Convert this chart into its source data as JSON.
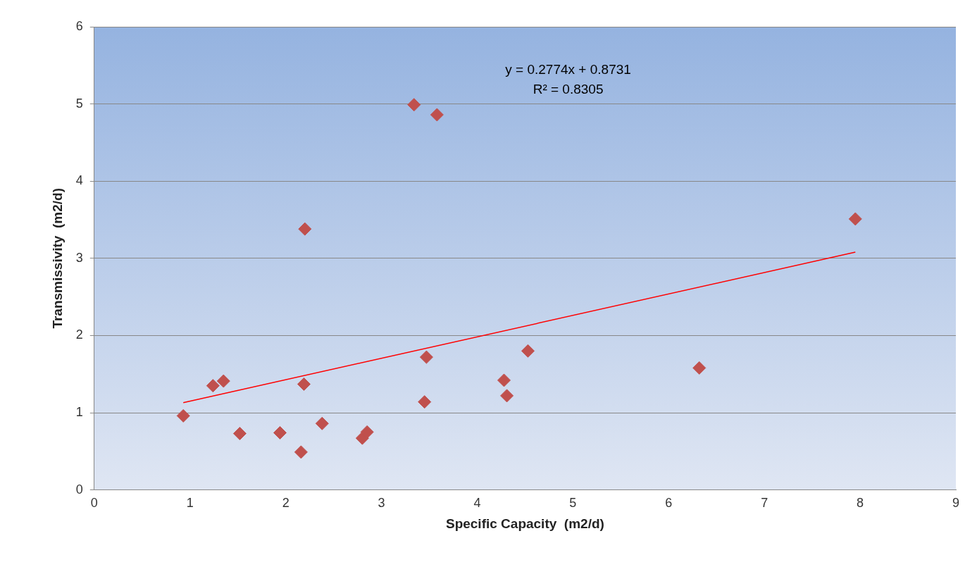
{
  "chart_data": {
    "type": "scatter",
    "xlabel": "Specific Capacity  (m2/d)",
    "ylabel": "Transmissivity  (m2/d)",
    "annotations": [
      "y = 0.2774x + 0.8731",
      "R² = 0.8305"
    ],
    "xlim": [
      0,
      9
    ],
    "xticks": [
      0,
      1,
      2,
      3,
      4,
      5,
      6,
      7,
      8,
      9
    ],
    "ylim": [
      0,
      6
    ],
    "yticks": [
      0,
      1,
      2,
      3,
      4,
      5,
      6
    ],
    "grid": "y",
    "legend": false,
    "marker": "diamond",
    "series": [
      {
        "type": "scatter",
        "color": "#c0504d",
        "x": [
          0.93,
          1.24,
          1.35,
          1.52,
          1.94,
          2.16,
          2.19,
          2.2,
          2.38,
          2.8,
          2.85,
          3.34,
          3.58,
          3.45,
          3.47,
          4.28,
          4.31,
          4.53,
          6.32,
          7.95
        ],
        "values": [
          0.96,
          1.35,
          1.41,
          0.73,
          0.74,
          0.49,
          1.37,
          3.38,
          0.86,
          0.67,
          0.75,
          4.99,
          4.86,
          1.14,
          1.72,
          1.42,
          1.22,
          1.8,
          1.58,
          3.51
        ]
      },
      {
        "type": "line",
        "color": "#ff0000",
        "marker": "none",
        "x": [
          0.93,
          7.95
        ],
        "values": [
          1.13,
          3.08
        ]
      }
    ]
  }
}
